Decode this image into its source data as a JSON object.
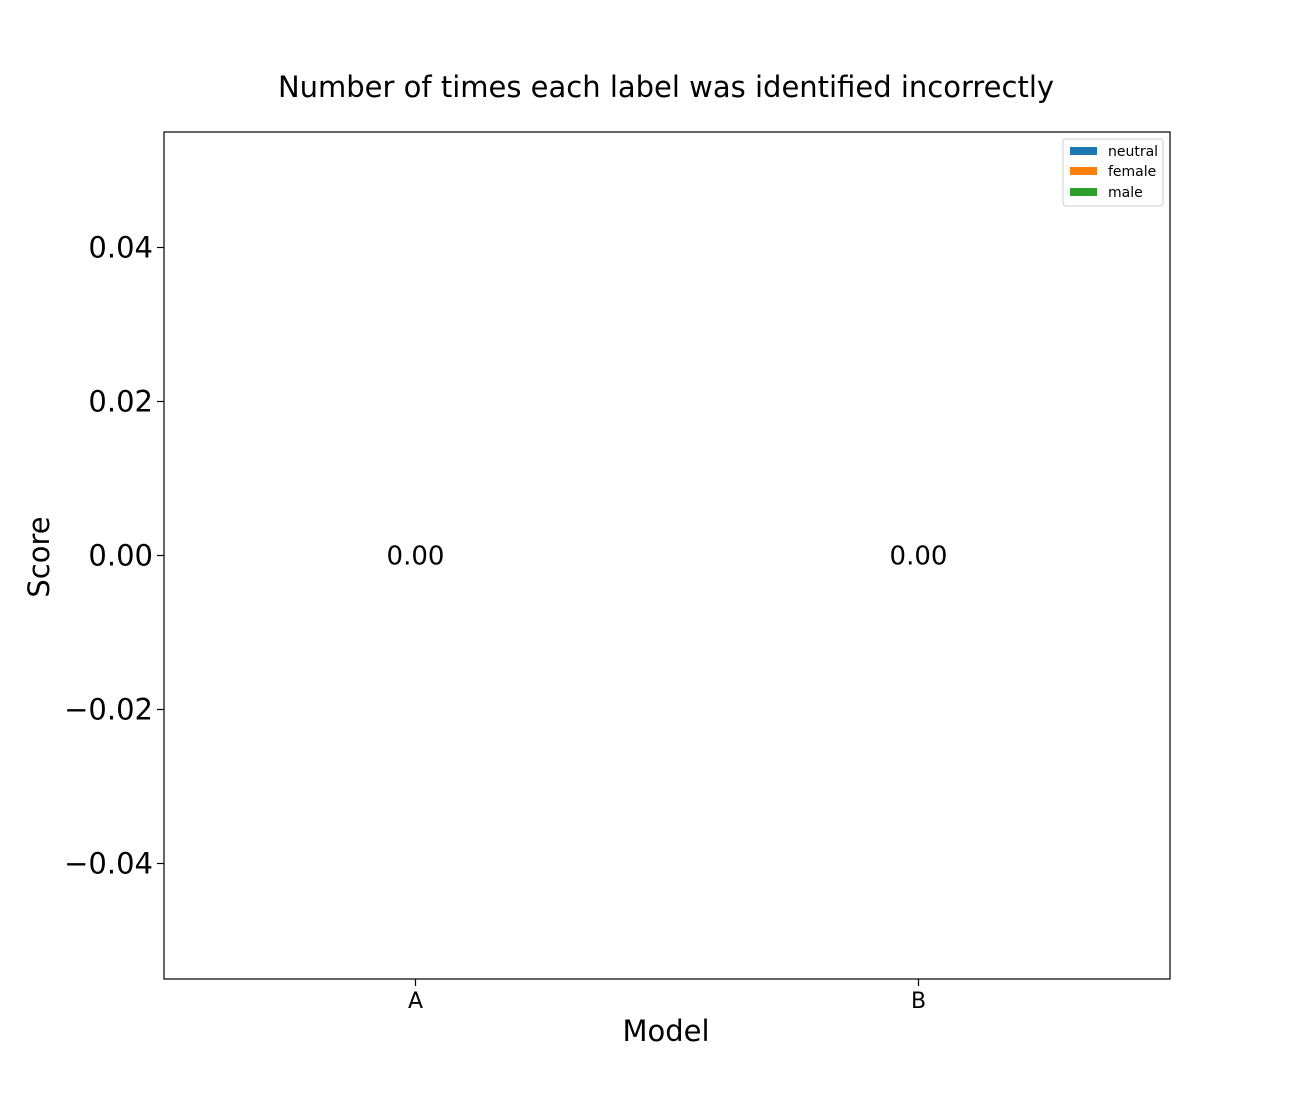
{
  "chart_data": {
    "type": "bar",
    "title": "Number of times each label was identified incorrectly",
    "xlabel": "Model",
    "ylabel": "Score",
    "categories": [
      "A",
      "B"
    ],
    "series": [
      {
        "name": "neutral",
        "values": [
          0,
          0
        ],
        "color": "#1f77b4"
      },
      {
        "name": "female",
        "values": [
          0,
          0
        ],
        "color": "#ff7f0e"
      },
      {
        "name": "male",
        "values": [
          0,
          0
        ],
        "color": "#2ca02c"
      }
    ],
    "bar_labels": [
      "0.00",
      "0.00"
    ],
    "ylim": [
      -0.055,
      0.055
    ],
    "yticks": [
      {
        "value": 0.04,
        "label": "0.04"
      },
      {
        "value": 0.02,
        "label": "0.02"
      },
      {
        "value": 0.0,
        "label": "0.00"
      },
      {
        "value": -0.02,
        "label": "−0.02"
      },
      {
        "value": -0.04,
        "label": "−0.04"
      }
    ],
    "grid": false,
    "legend_position": "top-right"
  }
}
